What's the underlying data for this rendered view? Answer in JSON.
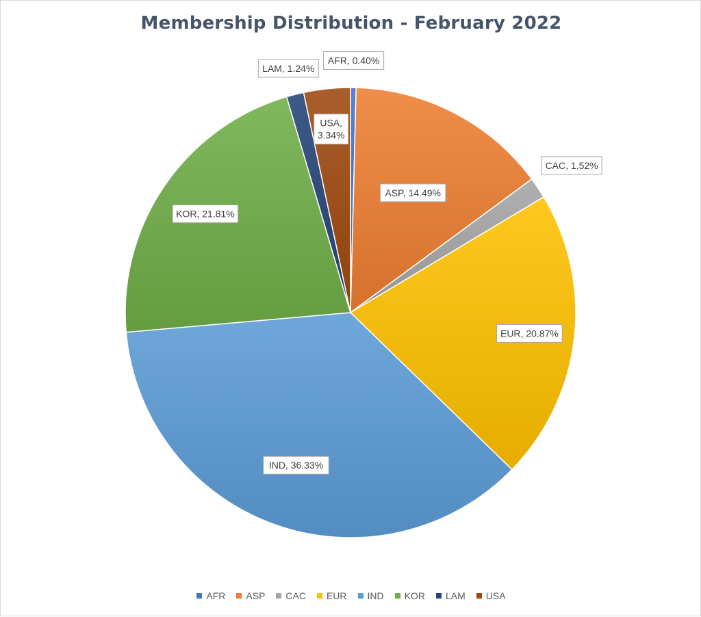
{
  "chart_data": {
    "type": "pie",
    "title": "Membership Distribution - February 2022",
    "categories": [
      "AFR",
      "ASP",
      "CAC",
      "EUR",
      "IND",
      "KOR",
      "LAM",
      "USA"
    ],
    "values": [
      0.4,
      14.49,
      1.52,
      20.87,
      36.33,
      21.81,
      1.24,
      3.34
    ],
    "data_labels": [
      "AFR, 0.40%",
      "ASP, 14.49%",
      "CAC, 1.52%",
      "EUR, 20.87%",
      "IND, 36.33%",
      "KOR, 21.81%",
      "LAM, 1.24%",
      "USA, 3.34%"
    ],
    "colors": [
      "#4472c4",
      "#ed7d31",
      "#a5a5a5",
      "#ffc000",
      "#5b9bd5",
      "#70ad47",
      "#264478",
      "#9e480e"
    ],
    "legend_position": "bottom"
  }
}
